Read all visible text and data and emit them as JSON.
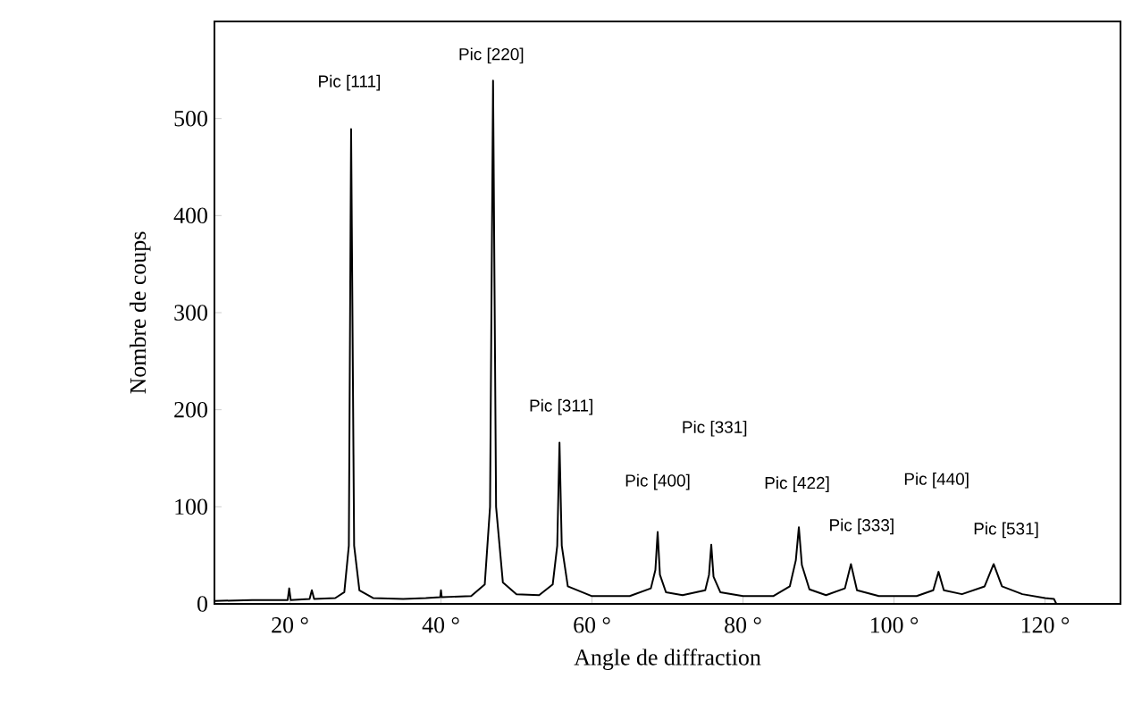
{
  "chart_data": {
    "type": "line",
    "xlabel": "Angle de diffraction",
    "ylabel": "Nombre de coups",
    "xlim": [
      10,
      130
    ],
    "ylim": [
      0,
      600
    ],
    "xticks": [
      {
        "value": 20,
        "label": "20 °"
      },
      {
        "value": 40,
        "label": "40 °"
      },
      {
        "value": 60,
        "label": "60 °"
      },
      {
        "value": 80,
        "label": "80 °"
      },
      {
        "value": 100,
        "label": "100 °"
      },
      {
        "value": 120,
        "label": "120 °"
      }
    ],
    "yticks": [
      0,
      100,
      200,
      300,
      400,
      500
    ],
    "x": [
      10,
      15,
      19.7,
      19.9,
      20.1,
      22.6,
      22.9,
      23.2,
      26,
      27.2,
      27.8,
      28.1,
      28.5,
      29.2,
      31,
      35,
      38,
      39.9,
      40,
      40.1,
      44,
      45.8,
      46.5,
      46.9,
      47.3,
      48.2,
      50,
      53,
      54.8,
      55.4,
      55.7,
      56.0,
      56.8,
      60,
      65,
      67.8,
      68.4,
      68.7,
      69.0,
      69.8,
      72,
      75,
      75.5,
      75.8,
      76.1,
      77,
      80,
      84,
      86.2,
      87,
      87.4,
      87.8,
      88.8,
      91,
      93.5,
      94.3,
      95.1,
      98,
      103,
      105.2,
      105.9,
      106.6,
      109,
      112,
      113.2,
      114.3,
      117,
      120,
      121.2,
      121.5,
      122
    ],
    "series": [
      {
        "color": "#000000",
        "values": [
          3,
          4,
          4,
          16,
          4,
          5,
          14,
          5,
          6,
          12,
          60,
          489,
          60,
          14,
          6,
          5,
          6,
          7,
          14,
          7,
          8,
          20,
          100,
          539,
          100,
          22,
          10,
          9,
          20,
          60,
          166,
          60,
          18,
          8,
          8,
          16,
          35,
          74,
          30,
          12,
          9,
          14,
          30,
          61,
          28,
          12,
          8,
          8,
          18,
          45,
          79,
          40,
          15,
          9,
          16,
          41,
          14,
          8,
          8,
          14,
          33,
          14,
          10,
          18,
          41,
          18,
          10,
          6,
          5,
          0,
          0
        ]
      }
    ],
    "annotations": [
      {
        "text": "Pic [111]",
        "x": 28.1,
        "y": 489
      },
      {
        "text": "Pic [220]",
        "x": 46.9,
        "y": 539
      },
      {
        "text": "Pic [311]",
        "x": 55.7,
        "y": 166
      },
      {
        "text": "Pic [400]",
        "x": 68.7,
        "y": 74
      },
      "Pic [331]",
      {
        "text": "Pic [422]",
        "x": 87.4,
        "y": 79
      },
      {
        "text": "Pic [333]",
        "x": 94.3,
        "y": 41
      },
      "Pic [440]",
      {
        "text": "Pic [531]",
        "x": 113.2,
        "y": 41
      }
    ]
  }
}
